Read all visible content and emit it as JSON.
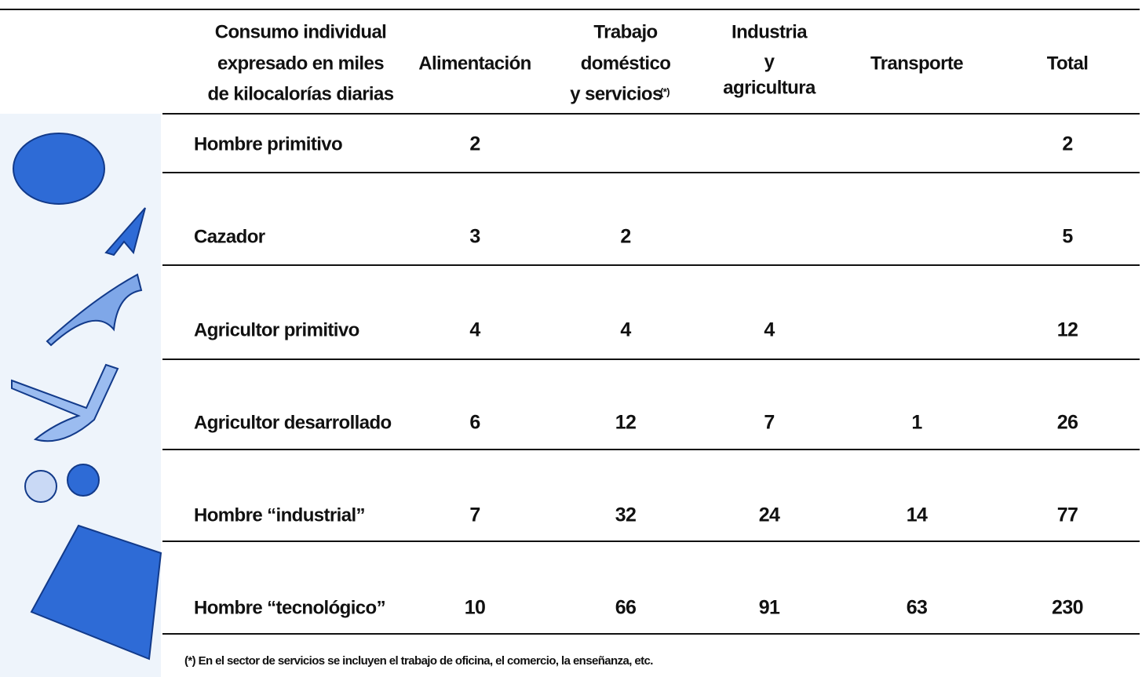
{
  "header": {
    "columns": [
      {
        "lines": [
          "Consumo individual",
          "expresado en miles",
          "de kilocalorías diarias"
        ]
      },
      {
        "lines": [
          "Alimentación"
        ]
      },
      {
        "lines": [
          "Trabajo",
          "doméstico",
          "y servicios"
        ],
        "note_mark": "(*)"
      },
      {
        "lines": [
          "Industria",
          "y",
          "agricultura"
        ]
      },
      {
        "lines": [
          "Transporte"
        ]
      },
      {
        "lines": [
          "Total"
        ]
      }
    ]
  },
  "table": {
    "rows": [
      [
        "Hombre primitivo",
        2,
        null,
        null,
        null,
        2
      ],
      [
        "Cazador",
        3,
        2,
        null,
        null,
        5
      ],
      [
        "Agricultor primitivo",
        4,
        4,
        4,
        null,
        12
      ],
      [
        "Agricultor desarrollado",
        6,
        12,
        7,
        1,
        26
      ],
      [
        "Hombre “industrial”",
        7,
        32,
        24,
        14,
        77
      ],
      [
        "Hombre “tecnológico”",
        10,
        66,
        91,
        63,
        230
      ]
    ]
  },
  "footnote": "(*) En el sector de servicios se incluyen el trabajo de oficina, el comercio, la enseñanza, etc."
}
